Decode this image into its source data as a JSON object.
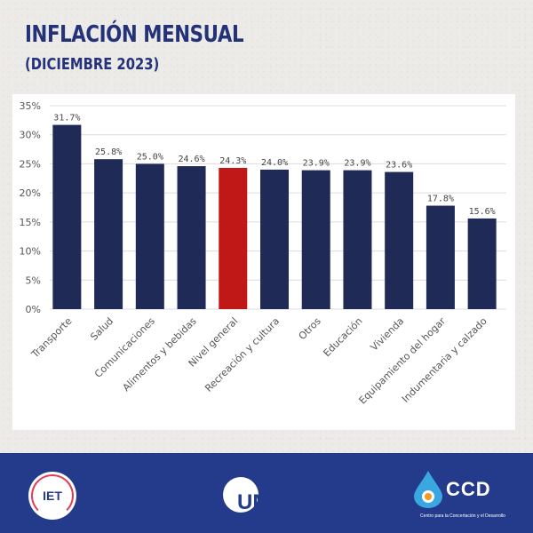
{
  "header": {
    "title": "INFLACIÓN MENSUAL",
    "subtitle": "(DICIEMBRE 2023)"
  },
  "colors": {
    "bar": "#1f2a57",
    "highlight": "#c01717",
    "title": "#24327a",
    "footer": "#233b8a"
  },
  "chart_data": {
    "type": "bar",
    "categories": [
      "Transporte",
      "Salud",
      "Comunicaciones",
      "Alimentos y bebidas",
      "Nivel general",
      "Recreación y cultura",
      "Otros",
      "Educación",
      "Vivienda",
      "Equipamiento del hogar",
      "Indumentaria y calzado"
    ],
    "values": [
      31.7,
      25.8,
      25.0,
      24.6,
      24.3,
      24.0,
      23.9,
      23.9,
      23.6,
      17.8,
      15.6
    ],
    "value_labels": [
      "31.7%",
      "25.8%",
      "25.0%",
      "24.6%",
      "24.3%",
      "24.0%",
      "23.9%",
      "23.9%",
      "23.6%",
      "17.8%",
      "15.6%"
    ],
    "highlight_category": "Nivel general",
    "yticks": [
      "0%",
      "5%",
      "10%",
      "15%",
      "20%",
      "25%",
      "30%",
      "35%"
    ],
    "ylim": [
      0,
      35
    ],
    "grid": true,
    "xlabel": "",
    "ylabel": ""
  },
  "footer": {
    "logos": {
      "iet": "IET",
      "umet": "UMET",
      "ccd": "CCD",
      "ccd_subtitle": "Centro para la Concertación y el Desarrollo"
    }
  }
}
